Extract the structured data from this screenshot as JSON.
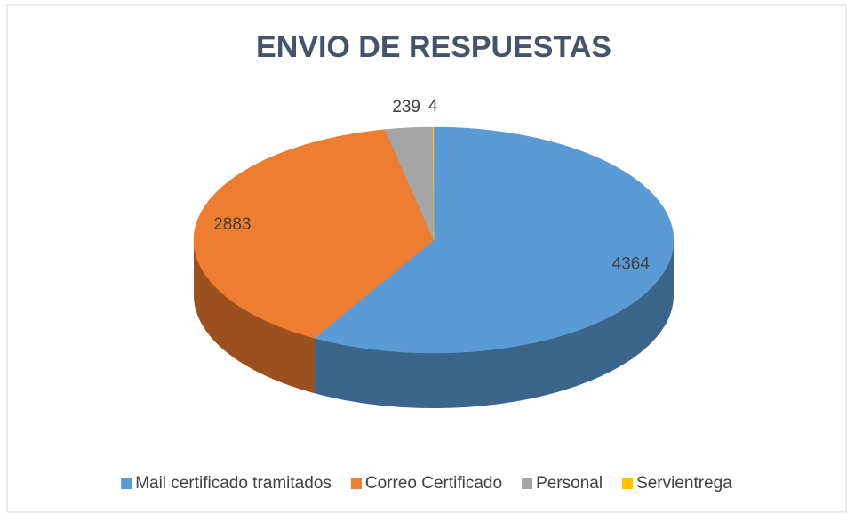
{
  "chart_data": {
    "type": "pie",
    "title": "ENVIO DE RESPUESTAS",
    "categories": [
      "Mail certificado tramitados",
      "Correo Certificado",
      "Personal",
      "Servientrega"
    ],
    "values": [
      4364,
      2883,
      239,
      4
    ],
    "colors": [
      "#5b9bd5",
      "#ed7d31",
      "#a5a5a5",
      "#ffc000"
    ],
    "legend": "bottom"
  }
}
